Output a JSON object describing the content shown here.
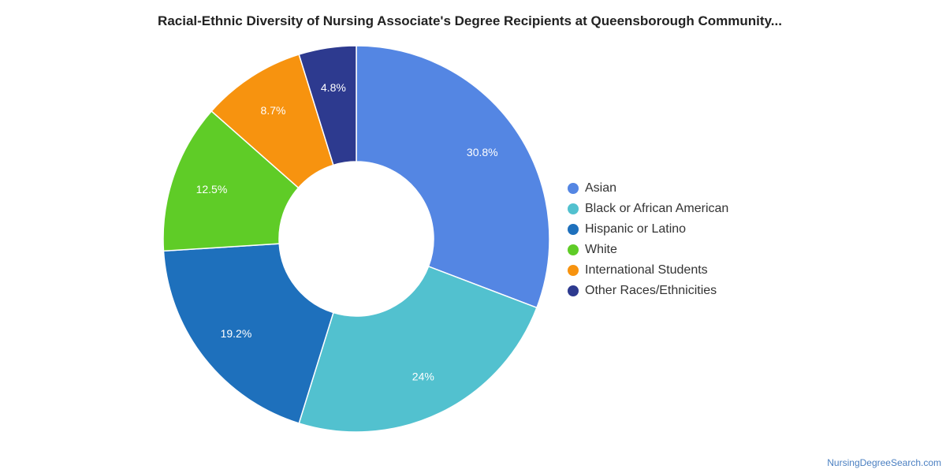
{
  "chart_data": {
    "type": "pie",
    "title": "Racial-Ethnic Diversity of Nursing Associate's Degree Recipients at Queensborough Community...",
    "categories": [
      "Asian",
      "Black or African American",
      "Hispanic or Latino",
      "White",
      "International Students",
      "Other Races/Ethnicities"
    ],
    "values": [
      30.8,
      24,
      19.2,
      12.5,
      8.7,
      4.8
    ],
    "value_labels": [
      "30.8%",
      "24%",
      "19.2%",
      "12.5%",
      "8.7%",
      "4.8%"
    ],
    "colors": [
      "#5486e3",
      "#52c1cf",
      "#1e70bc",
      "#5fcc27",
      "#f7930f",
      "#2d3a8f"
    ],
    "legend_position": "right",
    "style": "donut"
  },
  "source": "NursingDegreeSearch.com"
}
